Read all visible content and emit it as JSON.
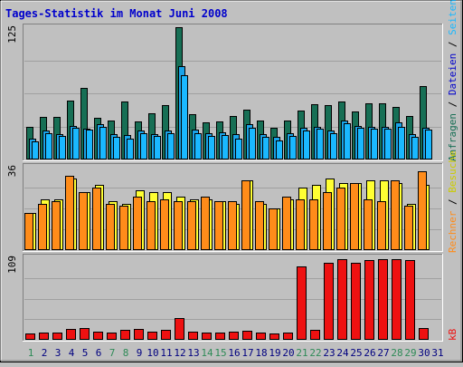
{
  "chart_data": {
    "type": "bar",
    "title": "Tages-Statistik im Monat Juni 2008",
    "x": [
      "1",
      "2",
      "3",
      "4",
      "5",
      "6",
      "7",
      "8",
      "9",
      "10",
      "11",
      "12",
      "13",
      "14",
      "15",
      "16",
      "17",
      "18",
      "19",
      "20",
      "21",
      "22",
      "23",
      "24",
      "25",
      "26",
      "27",
      "28",
      "29",
      "30",
      "31"
    ],
    "weekend_days": [
      "1",
      "7",
      "8",
      "14",
      "15",
      "21",
      "22",
      "28",
      "29"
    ],
    "colors": {
      "background": "#c0c0c0",
      "title": "#0000cc",
      "weekday_label": "#000080",
      "weekend_label": "#2e8b57",
      "anfragen": "#176f55",
      "dateien": "#1aa3e8",
      "seiten": "#1ab8ff",
      "besuche": "#ffff33",
      "rechner": "#ff8c1a",
      "kb": "#ee1111"
    },
    "panels": [
      {
        "ymax": 125,
        "ymax_label": "125",
        "legend": [
          {
            "text": "Anfragen",
            "color": "#176f55"
          },
          {
            "text": "Dateien",
            "color": "#0000cc"
          },
          {
            "text": "Seiten",
            "color": "#1ab8ff"
          }
        ],
        "series": [
          {
            "name": "Anfragen",
            "color": "#176f55",
            "values": [
              31,
              40,
              40,
              56,
              68,
              39,
              37,
              55,
              36,
              44,
              51,
              125,
              43,
              35,
              36,
              41,
              47,
              37,
              30,
              37,
              46,
              52,
              51,
              55,
              45,
              53,
              53,
              50,
              41,
              69,
              0
            ]
          },
          {
            "name": "Dateien",
            "color": "#1aa3e8",
            "values": [
              20,
              27,
              24,
              32,
              29,
              33,
              24,
              23,
              27,
              24,
              27,
              88,
              28,
              25,
              26,
              24,
              33,
              24,
              21,
              25,
              30,
              31,
              27,
              37,
              32,
              31,
              31,
              35,
              24,
              30,
              0
            ]
          },
          {
            "name": "Seiten",
            "color": "#1ab8ff",
            "values": [
              17,
              25,
              22,
              30,
              28,
              31,
              21,
              20,
              25,
              22,
              25,
              80,
              25,
              22,
              23,
              20,
              30,
              21,
              18,
              22,
              27,
              29,
              25,
              34,
              30,
              29,
              29,
              31,
              21,
              28,
              0
            ]
          }
        ]
      },
      {
        "ymax": 36,
        "ymax_label": "36",
        "legend": [
          {
            "text": "Rechner",
            "color": "#ff8c1a"
          },
          {
            "text": "Besuche",
            "color": "#cccc00"
          }
        ],
        "series": [
          {
            "name": "Besuche",
            "color": "#ffff33",
            "values": [
              16,
              22,
              22,
              31,
              25,
              28,
              21,
              20,
              26,
              25,
              25,
              23,
              22,
              22,
              21,
              20,
              30,
              20,
              18,
              22,
              27,
              28,
              31,
              29,
              29,
              30,
              30,
              29,
              20,
              28,
              0
            ]
          },
          {
            "name": "Rechner",
            "color": "#ff8c1a",
            "values": [
              16,
              20,
              21,
              32,
              25,
              27,
              20,
              19,
              23,
              21,
              22,
              21,
              21,
              23,
              21,
              21,
              30,
              21,
              18,
              23,
              22,
              22,
              25,
              27,
              29,
              22,
              21,
              30,
              19,
              34,
              0
            ]
          }
        ]
      },
      {
        "ymax": 109,
        "ymax_label": "109",
        "legend": [
          {
            "text": "kB",
            "color": "#ee1111"
          }
        ],
        "series": [
          {
            "name": "kB",
            "color": "#ee1111",
            "values": [
              8,
              10,
              10,
              14,
              16,
              11,
              10,
              13,
              14,
              11,
              13,
              29,
              11,
              9,
              10,
              11,
              12,
              10,
              8,
              9,
              97,
              13,
              102,
              107,
              102,
              106,
              107,
              107,
              105,
              16,
              0
            ]
          }
        ]
      }
    ]
  }
}
